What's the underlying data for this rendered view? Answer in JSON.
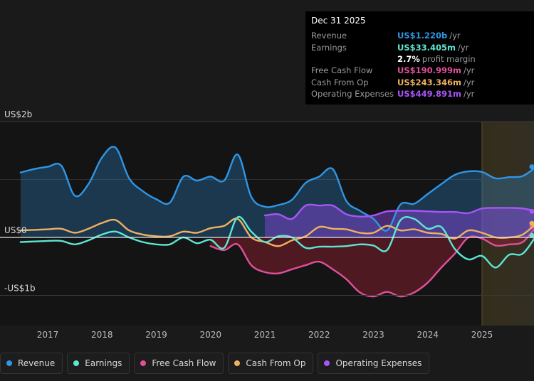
{
  "tooltip": {
    "date": "Dec 31 2025",
    "rows": [
      {
        "label": "Revenue",
        "value": "US$1.220b",
        "unit": "/yr",
        "color": "#2f96e6"
      },
      {
        "label": "Earnings",
        "value": "US$33.405m",
        "unit": "/yr",
        "color": "#5de6d2"
      },
      {
        "label": "",
        "value": "2.7%",
        "unit": "profit margin",
        "color": "#ffffff"
      },
      {
        "label": "Free Cash Flow",
        "value": "US$190.999m",
        "unit": "/yr",
        "color": "#e0509a"
      },
      {
        "label": "Cash From Op",
        "value": "US$243.346m",
        "unit": "/yr",
        "color": "#f0b060"
      },
      {
        "label": "Operating Expenses",
        "value": "US$449.891m",
        "unit": "/yr",
        "color": "#a855f7"
      }
    ]
  },
  "legend": [
    {
      "label": "Revenue",
      "color": "#2f96e6"
    },
    {
      "label": "Earnings",
      "color": "#5de6d2"
    },
    {
      "label": "Free Cash Flow",
      "color": "#e0509a"
    },
    {
      "label": "Cash From Op",
      "color": "#f0b060"
    },
    {
      "label": "Operating Expenses",
      "color": "#a855f7"
    }
  ],
  "chart_data": {
    "type": "area",
    "y_tick_labels": [
      {
        "value": 2.0,
        "label": "US$2b"
      },
      {
        "value": 0,
        "label": "US$0"
      },
      {
        "value": -1.0,
        "label": "-US$1b"
      }
    ],
    "x_tick_labels": [
      "2017",
      "2018",
      "2019",
      "2020",
      "2021",
      "2022",
      "2023",
      "2024",
      "2025"
    ],
    "x_tick_values": [
      2017,
      2018,
      2019,
      2020,
      2021,
      2022,
      2023,
      2024,
      2025
    ],
    "xlim": [
      2016.6,
      2026.0
    ],
    "ylim": [
      -1.1,
      1.65
    ],
    "forecast_start": 2025.0,
    "series": [
      {
        "name": "Revenue",
        "color": "#2f96e6",
        "x": [
          2016.5,
          2016.75,
          2017.0,
          2017.25,
          2017.5,
          2017.75,
          2018.0,
          2018.25,
          2018.5,
          2018.75,
          2019.0,
          2019.25,
          2019.5,
          2019.75,
          2020.0,
          2020.25,
          2020.5,
          2020.75,
          2021.0,
          2021.25,
          2021.5,
          2021.75,
          2022.0,
          2022.25,
          2022.5,
          2022.75,
          2023.0,
          2023.25,
          2023.5,
          2023.75,
          2024.0,
          2024.25,
          2024.5,
          2024.75,
          2025.0,
          2025.25,
          2025.5,
          2025.75,
          2026.0
        ],
        "y": [
          1.12,
          1.18,
          1.22,
          1.24,
          0.72,
          0.92,
          1.38,
          1.55,
          1.02,
          0.8,
          0.66,
          0.6,
          1.05,
          0.98,
          1.05,
          0.98,
          1.43,
          0.7,
          0.53,
          0.56,
          0.65,
          0.94,
          1.05,
          1.18,
          0.63,
          0.46,
          0.32,
          0.12,
          0.57,
          0.58,
          0.75,
          0.92,
          1.08,
          1.14,
          1.13,
          1.02,
          1.04,
          1.06,
          1.22
        ]
      },
      {
        "name": "Earnings",
        "color": "#5de6d2",
        "x": [
          2016.5,
          2016.75,
          2017.0,
          2017.25,
          2017.5,
          2017.75,
          2018.0,
          2018.25,
          2018.5,
          2018.75,
          2019.0,
          2019.25,
          2019.5,
          2019.75,
          2020.0,
          2020.25,
          2020.5,
          2020.75,
          2021.0,
          2021.25,
          2021.5,
          2021.75,
          2022.0,
          2022.25,
          2022.5,
          2022.75,
          2023.0,
          2023.25,
          2023.5,
          2023.75,
          2024.0,
          2024.25,
          2024.5,
          2024.75,
          2025.0,
          2025.25,
          2025.5,
          2025.75,
          2026.0
        ],
        "y": [
          -0.08,
          -0.07,
          -0.06,
          -0.06,
          -0.12,
          -0.05,
          0.05,
          0.1,
          0.0,
          -0.08,
          -0.12,
          -0.12,
          0.0,
          -0.1,
          -0.04,
          -0.18,
          0.35,
          0.1,
          -0.08,
          0.02,
          0.0,
          -0.18,
          -0.16,
          -0.16,
          -0.15,
          -0.12,
          -0.14,
          -0.22,
          0.3,
          0.32,
          0.15,
          0.18,
          -0.2,
          -0.38,
          -0.32,
          -0.52,
          -0.3,
          -0.28,
          0.033
        ]
      },
      {
        "name": "Free Cash Flow",
        "color": "#e0509a",
        "x": [
          2020.0,
          2020.25,
          2020.5,
          2020.75,
          2021.0,
          2021.25,
          2021.5,
          2021.75,
          2022.0,
          2022.25,
          2022.5,
          2022.75,
          2023.0,
          2023.25,
          2023.5,
          2023.75,
          2024.0,
          2024.25,
          2024.5,
          2024.75,
          2025.0,
          2025.25,
          2025.5,
          2025.75,
          2026.0
        ],
        "y": [
          -0.15,
          -0.22,
          -0.12,
          -0.48,
          -0.6,
          -0.62,
          -0.55,
          -0.48,
          -0.42,
          -0.55,
          -0.72,
          -0.95,
          -1.02,
          -0.94,
          -1.02,
          -0.95,
          -0.78,
          -0.52,
          -0.28,
          0.0,
          -0.02,
          -0.14,
          -0.12,
          -0.08,
          0.191
        ]
      },
      {
        "name": "Cash From Op",
        "color": "#f0b060",
        "x": [
          2016.5,
          2016.75,
          2017.0,
          2017.25,
          2017.5,
          2017.75,
          2018.0,
          2018.25,
          2018.5,
          2018.75,
          2019.0,
          2019.25,
          2019.5,
          2019.75,
          2020.0,
          2020.25,
          2020.5,
          2020.75,
          2021.0,
          2021.25,
          2021.5,
          2021.75,
          2022.0,
          2022.25,
          2022.5,
          2022.75,
          2023.0,
          2023.25,
          2023.5,
          2023.75,
          2024.0,
          2024.25,
          2024.5,
          2024.75,
          2025.0,
          2025.25,
          2025.5,
          2025.75,
          2026.0
        ],
        "y": [
          0.12,
          0.13,
          0.14,
          0.15,
          0.08,
          0.15,
          0.25,
          0.3,
          0.12,
          0.05,
          0.02,
          0.02,
          0.1,
          0.08,
          0.16,
          0.2,
          0.32,
          0.0,
          -0.08,
          -0.15,
          -0.05,
          0.02,
          0.18,
          0.15,
          0.14,
          0.08,
          0.08,
          0.2,
          0.12,
          0.14,
          0.08,
          0.06,
          -0.02,
          0.12,
          0.08,
          0.0,
          0.0,
          0.05,
          0.243
        ]
      },
      {
        "name": "Operating Expenses",
        "color": "#a855f7",
        "x": [
          2021.0,
          2021.25,
          2021.5,
          2021.75,
          2022.0,
          2022.25,
          2022.5,
          2022.75,
          2023.0,
          2023.25,
          2023.5,
          2023.75,
          2024.0,
          2024.25,
          2024.5,
          2024.75,
          2025.0,
          2025.25,
          2025.5,
          2025.75,
          2026.0
        ],
        "y": [
          0.38,
          0.4,
          0.32,
          0.55,
          0.55,
          0.55,
          0.4,
          0.36,
          0.38,
          0.45,
          0.46,
          0.46,
          0.45,
          0.44,
          0.44,
          0.42,
          0.5,
          0.51,
          0.51,
          0.5,
          0.45
        ]
      }
    ]
  }
}
